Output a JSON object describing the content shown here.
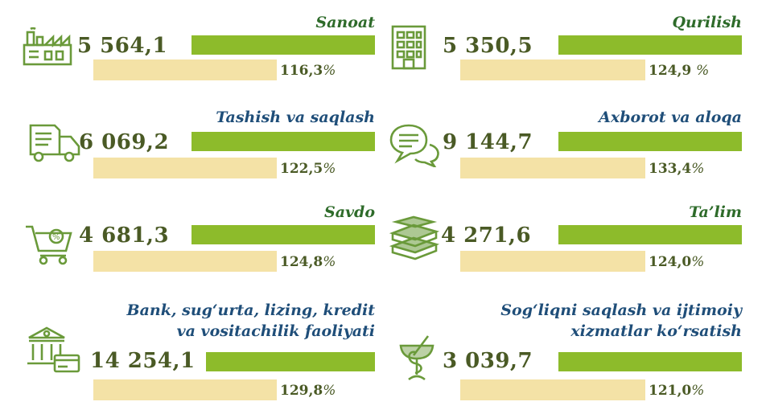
{
  "colors": {
    "green_bar": "#8dbb2b",
    "beige_bar": "#f4e2a6",
    "value_text": "#4a5a25",
    "label_green": "#2e6b2a",
    "label_blue": "#1f4e79",
    "icon": "#6a9a3a"
  },
  "sectors": [
    {
      "label_lines": [
        "Sanoat"
      ],
      "value": "5 564,1",
      "percent": "116,3",
      "pct_sign": "%",
      "icon": "factory-icon",
      "label_color": "#2e6b2a"
    },
    {
      "label_lines": [
        "Qurilish"
      ],
      "value": "5 350,5",
      "percent": "124,9 ",
      "pct_sign": "%",
      "icon": "building-icon",
      "label_color": "#2e6b2a"
    },
    {
      "label_lines": [
        "Tashish va saqlash"
      ],
      "value": "6 069,2",
      "percent": "122,5",
      "pct_sign": "%",
      "icon": "truck-icon",
      "label_color": "#1f4e79"
    },
    {
      "label_lines": [
        "Axborot va aloqa"
      ],
      "value": "9 144,7",
      "percent": "133,4",
      "pct_sign": "%",
      "icon": "chat-icon",
      "label_color": "#1f4e79"
    },
    {
      "label_lines": [
        "Savdo"
      ],
      "value": "4 681,3",
      "percent": "124,8",
      "pct_sign": "%",
      "icon": "cart-icon",
      "label_color": "#2e6b2a"
    },
    {
      "label_lines": [
        "Ta’lim"
      ],
      "value": "4 271,6",
      "percent": "124,0",
      "pct_sign": "%",
      "icon": "books-icon",
      "label_color": "#2e6b2a"
    },
    {
      "label_lines": [
        "Bank, sug‘urta, lizing, kredit",
        "va vositachilik faoliyati"
      ],
      "value": "14 254,1",
      "percent": "129,8",
      "pct_sign": "%",
      "icon": "bank-icon",
      "label_color": "#1f4e79"
    },
    {
      "label_lines": [
        "Sog‘liqni saqlash va ijtimoiy",
        "xizmatlar ko‘rsatish"
      ],
      "value": "3 039,7",
      "percent": "121,0",
      "pct_sign": "%",
      "icon": "caduceus-icon",
      "label_color": "#1f4e79"
    }
  ],
  "chart_data": {
    "type": "bar",
    "categories": [
      "Sanoat",
      "Qurilish",
      "Tashish va saqlash",
      "Axborot va aloqa",
      "Savdo",
      "Ta’lim",
      "Bank, sug‘urta, lizing, kredit va vositachilik faoliyati",
      "Sog‘liqni saqlash va ijtimoiy xizmatlar ko‘rsatish"
    ],
    "series": [
      {
        "values": [
          5564.1,
          5350.5,
          6069.2,
          9144.7,
          4681.3,
          4271.6,
          14254.1,
          3039.7
        ]
      },
      {
        "values": [
          116.3,
          124.9,
          122.5,
          133.4,
          124.8,
          124.0,
          129.8,
          121.0
        ]
      }
    ]
  }
}
